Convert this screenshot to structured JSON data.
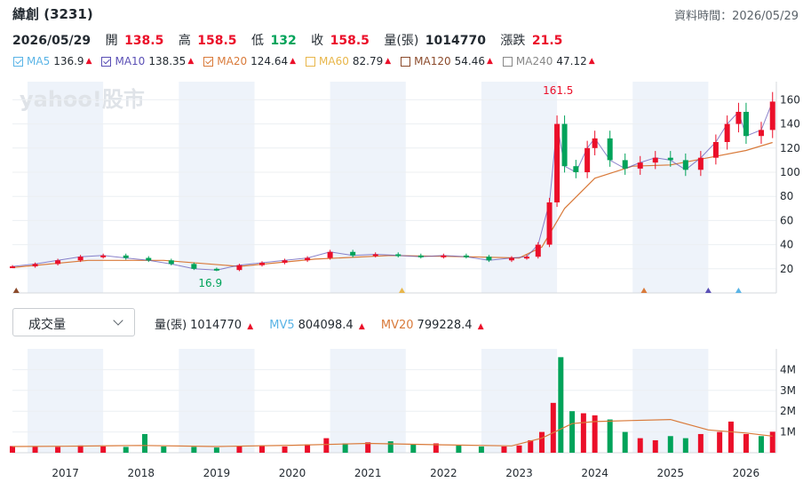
{
  "header": {
    "title": "緯創 (3231)",
    "data_time": "資料時間：2026/05/29"
  },
  "quote": {
    "date": "2026/05/29",
    "open_label": "開",
    "open": "138.5",
    "high_label": "高",
    "high": "158.5",
    "low_label": "低",
    "low": "132",
    "close_label": "收",
    "close": "158.5",
    "volume_label": "量(張)",
    "volume": "1014770",
    "change_label": "漲跌",
    "change": "21.5"
  },
  "ma_legend": [
    {
      "name": "MA5",
      "value": "136.9",
      "color": "#5ab4e6",
      "checked": true
    },
    {
      "name": "MA10",
      "value": "138.35",
      "color": "#5a4fb5",
      "checked": true
    },
    {
      "name": "MA20",
      "value": "124.64",
      "color": "#d97a3a",
      "checked": true
    },
    {
      "name": "MA60",
      "value": "82.79",
      "color": "#e8b64a",
      "checked": false
    },
    {
      "name": "MA120",
      "value": "54.46",
      "color": "#8b4a2b",
      "checked": false
    },
    {
      "name": "MA240",
      "value": "47.12",
      "color": "#888888",
      "checked": false
    }
  ],
  "ma_arrow": "▲",
  "volume_panel": {
    "selector": "成交量",
    "vol_label": "量(張)",
    "vol_value": "1014770",
    "mv5_label": "MV5",
    "mv5_value": "804098.4",
    "mv20_label": "MV20",
    "mv20_value": "799228.4",
    "arrow": "▲"
  },
  "watermark": "yahoo!股市",
  "colors": {
    "up": "#eb0f29",
    "down": "#00a35a",
    "band": "#eef3fa"
  },
  "chart_data": [
    {
      "type": "candlestick",
      "ylim": [
        0,
        175
      ],
      "y_ticks": [
        20,
        40,
        60,
        80,
        100,
        120,
        140,
        160
      ],
      "x_labels": [
        "2017",
        "2018",
        "2019",
        "2020",
        "2021",
        "2022",
        "2023",
        "2024",
        "2025",
        "2026"
      ],
      "annotations": [
        {
          "text": "161.5",
          "kind": "max"
        },
        {
          "text": "16.9",
          "kind": "min"
        }
      ],
      "series": [
        {
          "name": "price",
          "x": [
            2016.3,
            2016.6,
            2016.9,
            2017.2,
            2017.5,
            2017.8,
            2018.1,
            2018.4,
            2018.7,
            2019.0,
            2019.3,
            2019.6,
            2019.9,
            2020.2,
            2020.5,
            2020.8,
            2021.1,
            2021.4,
            2021.7,
            2022.0,
            2022.3,
            2022.6,
            2022.9,
            2023.1,
            2023.25,
            2023.4,
            2023.5,
            2023.6,
            2023.75,
            2023.9,
            2024.0,
            2024.2,
            2024.4,
            2024.6,
            2024.8,
            2025.0,
            2025.2,
            2025.4,
            2025.6,
            2025.75,
            2025.9,
            2026.0,
            2026.2,
            2026.35
          ],
          "y": [
            22,
            24,
            27,
            30,
            31,
            29,
            27,
            24,
            20,
            19,
            23,
            25,
            27,
            29,
            34,
            31,
            32,
            31,
            30,
            31,
            30,
            27,
            29,
            30,
            40,
            75,
            140,
            105,
            100,
            120,
            128,
            110,
            103,
            108,
            112,
            110,
            102,
            112,
            125,
            140,
            150,
            130,
            135,
            158.5
          ]
        },
        {
          "name": "MA20",
          "x": [
            2016.3,
            2017.3,
            2018.3,
            2019.3,
            2020.3,
            2021.3,
            2022.3,
            2023.0,
            2023.3,
            2023.6,
            2024.0,
            2024.5,
            2025.0,
            2025.5,
            2026.0,
            2026.35
          ],
          "y": [
            21,
            27,
            27,
            22,
            28,
            31,
            30,
            29,
            38,
            70,
            95,
            105,
            106,
            112,
            118,
            124.64
          ]
        }
      ]
    },
    {
      "type": "bar",
      "ylim": [
        0,
        5
      ],
      "y_ticks": [
        "1M",
        "2M",
        "3M",
        "4M"
      ],
      "y_tick_values": [
        1,
        2,
        3,
        4
      ],
      "series": [
        {
          "name": "量(張)",
          "x": [
            2016.3,
            2016.6,
            2016.9,
            2017.2,
            2017.5,
            2017.8,
            2018.05,
            2018.3,
            2018.7,
            2019.0,
            2019.3,
            2019.6,
            2019.9,
            2020.2,
            2020.45,
            2020.7,
            2021.0,
            2021.3,
            2021.6,
            2021.9,
            2022.2,
            2022.5,
            2022.8,
            2023.0,
            2023.15,
            2023.3,
            2023.45,
            2023.55,
            2023.7,
            2023.85,
            2024.0,
            2024.2,
            2024.4,
            2024.6,
            2024.8,
            2025.0,
            2025.2,
            2025.4,
            2025.65,
            2025.8,
            2026.0,
            2026.2,
            2026.35
          ],
          "values": [
            0.32,
            0.3,
            0.28,
            0.35,
            0.3,
            0.28,
            0.9,
            0.3,
            0.28,
            0.25,
            0.3,
            0.35,
            0.3,
            0.4,
            0.7,
            0.45,
            0.5,
            0.55,
            0.4,
            0.45,
            0.35,
            0.3,
            0.3,
            0.35,
            0.6,
            1.0,
            2.4,
            4.6,
            2.0,
            1.9,
            1.8,
            1.6,
            1.0,
            0.7,
            0.6,
            0.8,
            0.7,
            0.9,
            1.0,
            1.5,
            0.9,
            0.8,
            1.01
          ]
        },
        {
          "name": "MV20",
          "x": [
            2016.3,
            2017.0,
            2018.0,
            2019.0,
            2020.0,
            2021.0,
            2022.0,
            2022.9,
            2023.3,
            2023.7,
            2024.0,
            2024.5,
            2025.0,
            2025.5,
            2026.0,
            2026.35
          ],
          "values": [
            0.3,
            0.31,
            0.35,
            0.3,
            0.36,
            0.45,
            0.38,
            0.33,
            0.7,
            1.4,
            1.5,
            1.55,
            1.6,
            1.1,
            0.95,
            0.8
          ]
        }
      ]
    }
  ]
}
